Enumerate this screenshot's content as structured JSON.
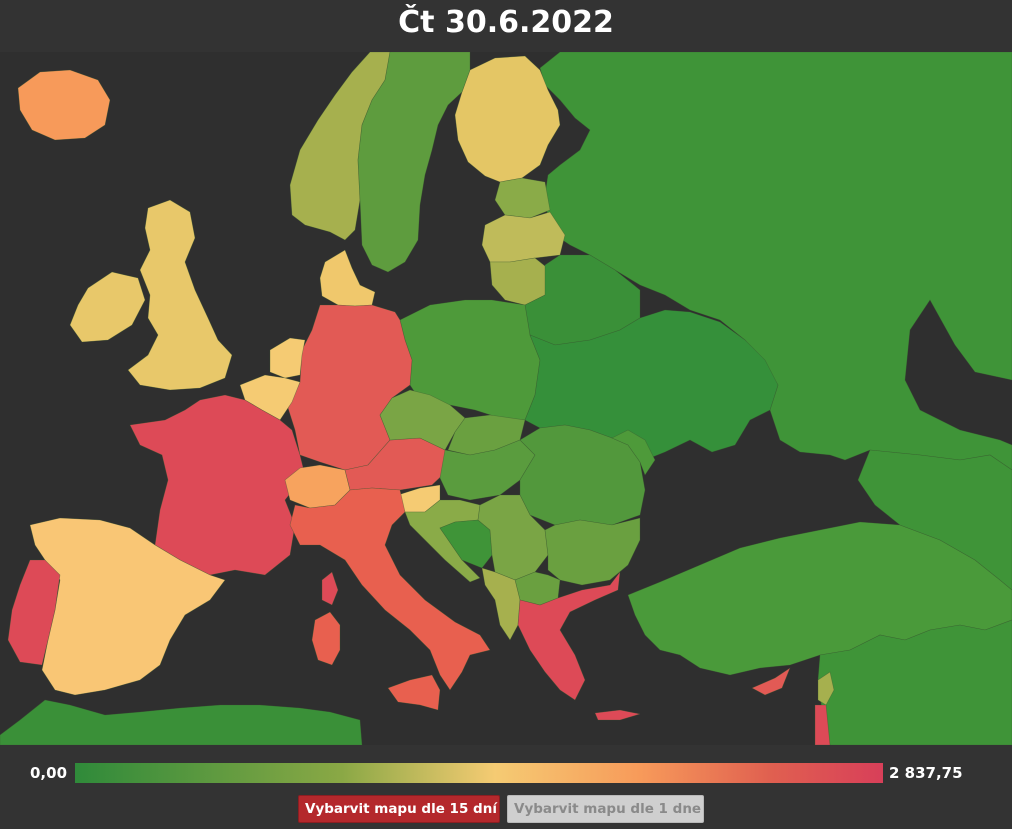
{
  "header": {
    "title": "Čt 30.6.2022"
  },
  "legend": {
    "min_label": "0,00",
    "max_label": "2 837,75",
    "min_value": 0,
    "max_value": 2837.75,
    "colors": [
      "#2f8a3a",
      "#8aa845",
      "#f5cb73",
      "#f79a5a",
      "#e06050",
      "#d83f59"
    ]
  },
  "buttons": {
    "color_15_days": "Vybarvit mapu dle 15 dní",
    "color_1_day": "Vybarvit mapu dle 1 dne"
  },
  "map": {
    "background_color": "#333333",
    "regions": [
      {
        "name": "iceland",
        "color": "#f79a5a"
      },
      {
        "name": "ireland",
        "color": "#e8c86a"
      },
      {
        "name": "united-kingdom",
        "color": "#e8c86a"
      },
      {
        "name": "norway",
        "color": "#a6b04e"
      },
      {
        "name": "sweden",
        "color": "#5e9c3e"
      },
      {
        "name": "finland",
        "color": "#e4c665"
      },
      {
        "name": "denmark",
        "color": "#f0c86c"
      },
      {
        "name": "estonia",
        "color": "#8aab48"
      },
      {
        "name": "latvia",
        "color": "#bfbb5a"
      },
      {
        "name": "lithuania",
        "color": "#a6b04e"
      },
      {
        "name": "russia",
        "color": "#3f9438"
      },
      {
        "name": "belarus",
        "color": "#3a9038"
      },
      {
        "name": "poland",
        "color": "#4e9a3a"
      },
      {
        "name": "ukraine",
        "color": "#35903a"
      },
      {
        "name": "germany",
        "color": "#e25a55"
      },
      {
        "name": "netherlands",
        "color": "#f5cb73"
      },
      {
        "name": "belgium",
        "color": "#f5cb73"
      },
      {
        "name": "france",
        "color": "#dd4a57"
      },
      {
        "name": "switzerland",
        "color": "#f7a35e"
      },
      {
        "name": "austria",
        "color": "#e25a55"
      },
      {
        "name": "czechia",
        "color": "#7aa545"
      },
      {
        "name": "slovakia",
        "color": "#6aa040"
      },
      {
        "name": "hungary",
        "color": "#5a9c3e"
      },
      {
        "name": "slovenia",
        "color": "#f5cb73"
      },
      {
        "name": "croatia",
        "color": "#8aab48"
      },
      {
        "name": "bosnia",
        "color": "#3f9438"
      },
      {
        "name": "serbia",
        "color": "#7aa545"
      },
      {
        "name": "romania",
        "color": "#52983c"
      },
      {
        "name": "moldova",
        "color": "#4e9a3a"
      },
      {
        "name": "bulgaria",
        "color": "#6aa040"
      },
      {
        "name": "north-macedonia",
        "color": "#6aa040"
      },
      {
        "name": "albania",
        "color": "#a6b04e"
      },
      {
        "name": "greece",
        "color": "#dd4a57"
      },
      {
        "name": "italy",
        "color": "#e8604f"
      },
      {
        "name": "spain",
        "color": "#f9c675"
      },
      {
        "name": "portugal",
        "color": "#dd4a57"
      },
      {
        "name": "turkey",
        "color": "#4a9a3a"
      },
      {
        "name": "cyprus",
        "color": "#e25a55"
      },
      {
        "name": "georgia",
        "color": "#3f9438"
      },
      {
        "name": "north-africa",
        "color": "#3a9038"
      },
      {
        "name": "middle-east",
        "color": "#3f9438"
      },
      {
        "name": "israel",
        "color": "#dd4a57"
      },
      {
        "name": "lebanon",
        "color": "#a6b04e"
      }
    ]
  }
}
